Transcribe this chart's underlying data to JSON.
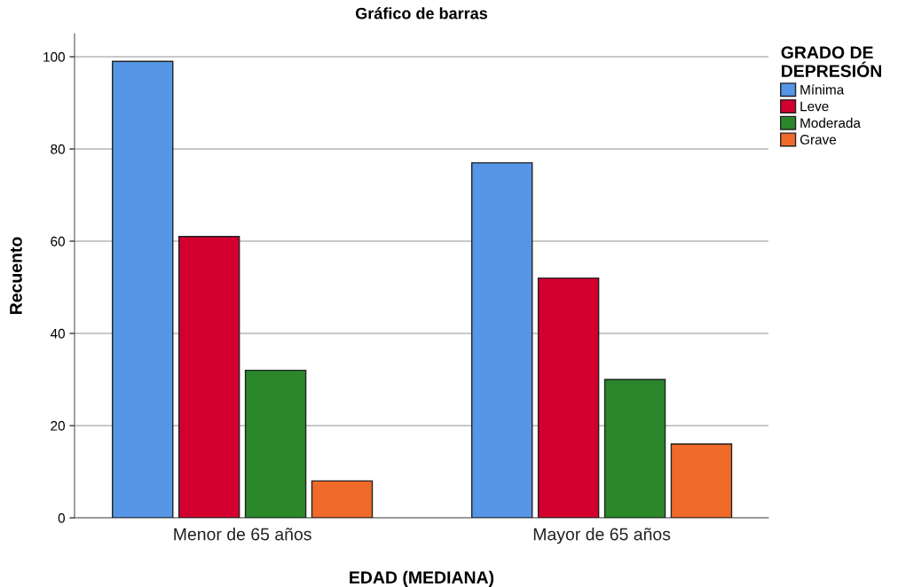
{
  "chart_data": {
    "type": "bar",
    "title": "Gráfico de barras",
    "xlabel": "EDAD (MEDIANA)",
    "ylabel": "Recuento",
    "legend_title": "GRADO DE\nDEPRESIÓN",
    "categories": [
      "Menor de 65 años",
      "Mayor de 65 años"
    ],
    "series": [
      {
        "name": "Mínima",
        "color": "#5596e6",
        "values": [
          99,
          77
        ]
      },
      {
        "name": "Leve",
        "color": "#d3002f",
        "values": [
          61,
          52
        ]
      },
      {
        "name": "Moderada",
        "color": "#2a882a",
        "values": [
          32,
          30
        ]
      },
      {
        "name": "Grave",
        "color": "#f06a2a",
        "values": [
          8,
          16
        ]
      }
    ],
    "ylim": [
      0,
      105
    ],
    "yticks": [
      0,
      20,
      40,
      60,
      80,
      100
    ],
    "grid": "y",
    "legend": "top right"
  }
}
